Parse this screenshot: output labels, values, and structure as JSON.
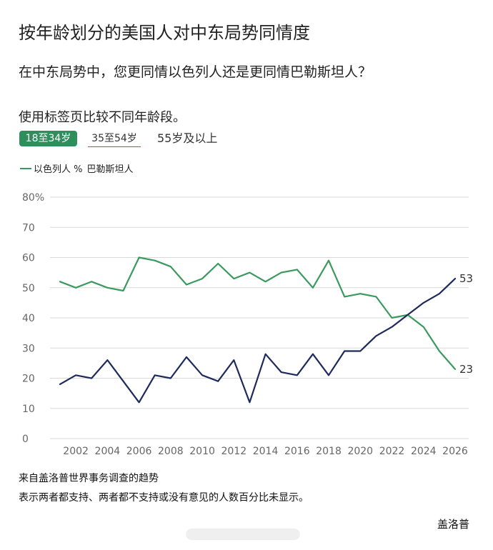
{
  "header": {
    "title": "按年龄划分的美国人对中东局势同情度",
    "question": "在中东局势中，您更同情以色列人还是更同情巴勒斯坦人？",
    "instruction": "使用标签页比较不同年龄段。"
  },
  "tabs": [
    {
      "label": "18至34岁",
      "selected": true
    },
    {
      "label": "35至54岁",
      "selected": false
    },
    {
      "label": "55岁及以上",
      "selected": false
    }
  ],
  "legend": {
    "label_a": "以色列人 %",
    "label_b": "巴勒斯坦人"
  },
  "colors": {
    "israelis": "#3a9a5e",
    "palestinians": "#1f2a5c",
    "grid": "#d9d9d9"
  },
  "chart_data": {
    "type": "line",
    "ylim": [
      0,
      80
    ],
    "y_ticks": [
      "0",
      "10",
      "20",
      "30",
      "40",
      "50",
      "60",
      "70",
      "80%"
    ],
    "xlim": [
      2001,
      2026
    ],
    "x_ticks": [
      "2002",
      "2004",
      "2006",
      "2008",
      "2010",
      "2012",
      "2014",
      "2016",
      "2018",
      "2020",
      "2022",
      "2024",
      "2026"
    ],
    "series": [
      {
        "key": "israelis",
        "x": [
          2001,
          2002,
          2003,
          2004,
          2005,
          2006,
          2007,
          2008,
          2009,
          2010,
          2011,
          2012,
          2013,
          2014,
          2015,
          2016,
          2017,
          2018,
          2019,
          2020,
          2021,
          2022,
          2023,
          2024,
          2025,
          2026
        ],
        "values": [
          52,
          50,
          52,
          50,
          49,
          60,
          59,
          57,
          51,
          53,
          58,
          53,
          55,
          52,
          55,
          56,
          50,
          59,
          47,
          48,
          47,
          40,
          41,
          37,
          29,
          23
        ],
        "end_label": "23"
      },
      {
        "key": "palestinians",
        "x": [
          2001,
          2002,
          2003,
          2004,
          2005,
          2006,
          2007,
          2008,
          2009,
          2010,
          2011,
          2012,
          2013,
          2014,
          2015,
          2016,
          2017,
          2018,
          2019,
          2020,
          2021,
          2022,
          2023,
          2024,
          2025,
          2026
        ],
        "values": [
          18,
          21,
          20,
          26,
          19,
          12,
          21,
          20,
          27,
          21,
          19,
          26,
          12,
          28,
          22,
          21,
          28,
          21,
          29,
          29,
          34,
          37,
          41,
          45,
          48,
          53
        ],
        "end_label": "53"
      }
    ]
  },
  "footer": {
    "source": "来自盖洛普世界事务调查的趋势",
    "note": "表示两者都支持、两者都不支持或没有意见的人数百分比未显示。",
    "brand": "盖洛普"
  }
}
